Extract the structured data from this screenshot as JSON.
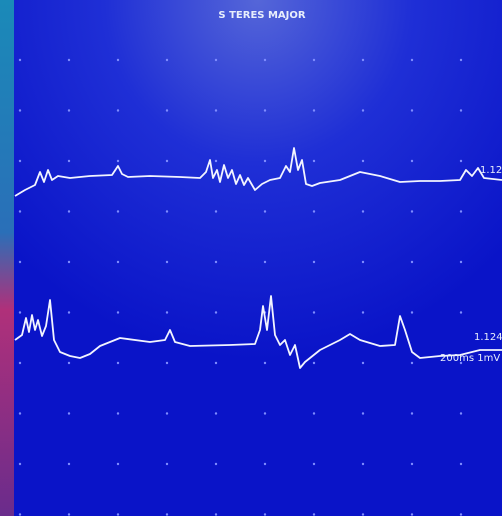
{
  "screen": {
    "title": "S TERES MAJOR",
    "traces": [
      {
        "label": "1.12"
      },
      {
        "label": "1.124",
        "scale": "200ms 1mV"
      }
    ]
  }
}
